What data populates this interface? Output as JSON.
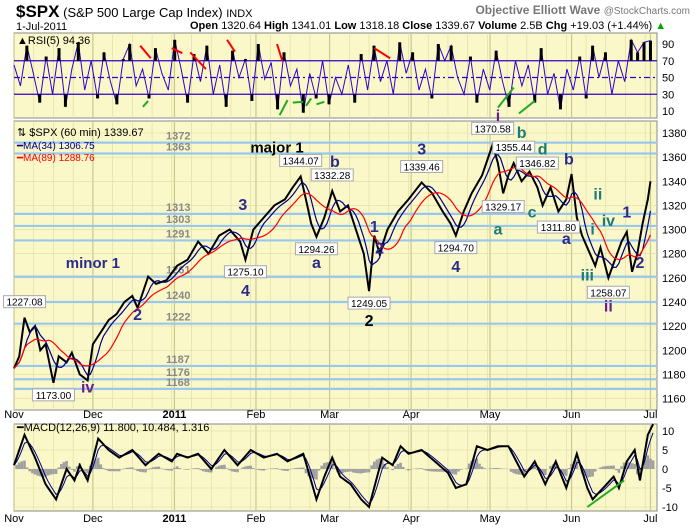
{
  "header": {
    "symbol": "$SPX",
    "name": "(S&P 500 Large Cap Index)",
    "exchange": "INDX",
    "brand": "Objective Elliott Wave",
    "site": "@StockCharts.com",
    "date": "1-Jul-2011",
    "open_label": "Open",
    "open": "1320.64",
    "high_label": "High",
    "high": "1341.01",
    "low_label": "Low",
    "low": "1318.18",
    "close_label": "Close",
    "close": "1339.67",
    "volume_label": "Volume",
    "volume": "2.5B",
    "chg_label": "Chg",
    "chg": "+19.03 (+1.44%)"
  },
  "colors": {
    "panel": "#faf7c8",
    "grid": "#dcdca0",
    "price": "#000000",
    "ma34": "#00008b",
    "ma89": "#ff0000",
    "hline": "#99c8ee",
    "wave": "#2b2b8c",
    "wave_teal": "#1e7a78",
    "wave_purple": "#6a1f8a",
    "rsi": "#3300cc",
    "hist": "#a0a0a0",
    "trend_red": "#ff0000",
    "trend_green": "#22aa22"
  },
  "chart_data": [
    {
      "type": "line",
      "title": "$SPX (60 min) 1339.67",
      "legend": [
        "MA(34) 1306.75",
        "MA(89) 1288.76"
      ],
      "ylim": [
        1150,
        1390
      ],
      "yticks": [
        1160,
        1180,
        1200,
        1220,
        1240,
        1260,
        1280,
        1300,
        1320,
        1340,
        1360,
        1380
      ],
      "xticks": [
        {
          "d": 0,
          "label": "Nov"
        },
        {
          "d": 30,
          "label": "Dec"
        },
        {
          "d": 61,
          "label": "2011",
          "bold": true
        },
        {
          "d": 92,
          "label": "Feb"
        },
        {
          "d": 120,
          "label": "Mar"
        },
        {
          "d": 151,
          "label": "Apr"
        },
        {
          "d": 181,
          "label": "May"
        },
        {
          "d": 212,
          "label": "Jun"
        },
        {
          "d": 242,
          "label": "Jul"
        }
      ],
      "price": [
        [
          0,
          1185
        ],
        [
          2,
          1195
        ],
        [
          4,
          1227
        ],
        [
          6,
          1215
        ],
        [
          8,
          1220
        ],
        [
          10,
          1200
        ],
        [
          12,
          1205
        ],
        [
          15,
          1173
        ],
        [
          17,
          1195
        ],
        [
          20,
          1190
        ],
        [
          22,
          1198
        ],
        [
          25,
          1180
        ],
        [
          28,
          1175
        ],
        [
          30,
          1205
        ],
        [
          33,
          1215
        ],
        [
          36,
          1225
        ],
        [
          39,
          1230
        ],
        [
          42,
          1240
        ],
        [
          45,
          1245
        ],
        [
          47,
          1235
        ],
        [
          51,
          1261
        ],
        [
          54,
          1255
        ],
        [
          58,
          1258
        ],
        [
          62,
          1270
        ],
        [
          66,
          1275
        ],
        [
          70,
          1290
        ],
        [
          74,
          1280
        ],
        [
          78,
          1295
        ],
        [
          82,
          1300
        ],
        [
          86,
          1290
        ],
        [
          88,
          1275
        ],
        [
          91,
          1300
        ],
        [
          95,
          1310
        ],
        [
          99,
          1320
        ],
        [
          103,
          1325
        ],
        [
          106,
          1335
        ],
        [
          109,
          1344
        ],
        [
          111,
          1325
        ],
        [
          113,
          1305
        ],
        [
          115,
          1294
        ],
        [
          118,
          1310
        ],
        [
          121,
          1332
        ],
        [
          124,
          1315
        ],
        [
          127,
          1320
        ],
        [
          130,
          1300
        ],
        [
          133,
          1280
        ],
        [
          135,
          1249
        ],
        [
          137,
          1295
        ],
        [
          139,
          1280
        ],
        [
          142,
          1300
        ],
        [
          146,
          1315
        ],
        [
          150,
          1325
        ],
        [
          155,
          1339
        ],
        [
          159,
          1330
        ],
        [
          163,
          1315
        ],
        [
          166,
          1305
        ],
        [
          168,
          1295
        ],
        [
          171,
          1315
        ],
        [
          174,
          1330
        ],
        [
          178,
          1345
        ],
        [
          182,
          1370.58
        ],
        [
          184,
          1355
        ],
        [
          186,
          1330
        ],
        [
          188,
          1345
        ],
        [
          190,
          1355
        ],
        [
          193,
          1340
        ],
        [
          196,
          1348
        ],
        [
          199,
          1335
        ],
        [
          201,
          1320
        ],
        [
          204,
          1335
        ],
        [
          207,
          1315
        ],
        [
          210,
          1325
        ],
        [
          212,
          1346
        ],
        [
          214,
          1310
        ],
        [
          216,
          1295
        ],
        [
          218,
          1285
        ],
        [
          221,
          1270
        ],
        [
          223,
          1285
        ],
        [
          226,
          1260
        ],
        [
          228,
          1272
        ],
        [
          231,
          1290
        ],
        [
          233,
          1298
        ],
        [
          235,
          1265
        ],
        [
          237,
          1280
        ],
        [
          239,
          1305
        ],
        [
          241,
          1325
        ],
        [
          242,
          1340
        ]
      ],
      "levels": [
        1372,
        1363,
        1313,
        1303,
        1291,
        1261,
        1240,
        1222,
        1187,
        1176,
        1168
      ],
      "callouts": [
        [
          4,
          1227,
          "1227.08"
        ],
        [
          15,
          1173,
          "1173.00"
        ],
        [
          88,
          1275,
          "1275.10"
        ],
        [
          109,
          1344,
          "1344.07"
        ],
        [
          115,
          1294,
          "1294.26"
        ],
        [
          121,
          1332,
          "1332.28"
        ],
        [
          135,
          1249,
          "1249.05"
        ],
        [
          155,
          1339,
          "1339.46"
        ],
        [
          168,
          1295,
          "1294.70"
        ],
        [
          182,
          1370.6,
          "1370.58"
        ],
        [
          190,
          1355,
          "1355.44"
        ],
        [
          199,
          1346,
          "1346.82"
        ],
        [
          186,
          1329,
          "1329.17"
        ],
        [
          207,
          1312,
          "1311.80"
        ],
        [
          226,
          1258,
          "1258.07"
        ]
      ],
      "waves": [
        [
          30,
          1268,
          "minor 1",
          "w"
        ],
        [
          47,
          1225,
          "2",
          "w"
        ],
        [
          28,
          1165,
          "iv",
          "p"
        ],
        [
          100,
          1358,
          "major 1",
          "k"
        ],
        [
          88,
          1255,
          "4",
          "w"
        ],
        [
          87,
          1316,
          "3",
          "w"
        ],
        [
          122,
          1340,
          "b",
          "w"
        ],
        [
          115,
          1280,
          "a",
          "w"
        ],
        [
          137,
          1298,
          "1",
          "w"
        ],
        [
          139,
          1280,
          "2",
          "w"
        ],
        [
          135,
          1232,
          "2",
          "k"
        ],
        [
          155,
          1350,
          "3",
          "w"
        ],
        [
          168,
          1278,
          "4",
          "w"
        ],
        [
          184,
          1384,
          "i",
          "p"
        ],
        [
          190,
          1376,
          "b",
          "t"
        ],
        [
          199,
          1362,
          "d",
          "t"
        ],
        [
          184,
          1312,
          "a",
          "t"
        ],
        [
          193,
          1312,
          "c",
          "t"
        ],
        [
          211,
          1354,
          "b",
          "w"
        ],
        [
          210,
          1300,
          "a",
          "w"
        ],
        [
          220,
          1296,
          "i",
          "t"
        ],
        [
          222,
          1325,
          "ii",
          "t"
        ],
        [
          226,
          1303,
          "iv",
          "t"
        ],
        [
          218,
          1258,
          "iii",
          "t"
        ],
        [
          231,
          1310,
          "1",
          "w"
        ],
        [
          238,
          1268,
          "2",
          "w"
        ],
        [
          226,
          1245,
          "ii",
          "p"
        ]
      ]
    },
    {
      "type": "line",
      "title": "RSI(5) 94.36",
      "ylim": [
        0,
        100
      ],
      "yticks": [
        10,
        30,
        50,
        70,
        90
      ],
      "levels": [
        30,
        50,
        70
      ],
      "values": [
        65,
        40,
        88,
        55,
        20,
        75,
        30,
        85,
        15,
        60,
        92,
        35,
        70,
        25,
        80,
        45,
        18,
        72,
        90,
        40,
        60,
        25,
        85,
        55,
        35,
        95,
        60,
        20,
        78,
        45,
        88,
        30,
        65,
        15,
        82,
        50,
        72,
        22,
        90,
        48,
        68,
        12,
        80,
        40,
        60,
        8,
        55,
        25,
        70,
        18,
        50,
        30,
        65,
        20,
        78,
        35,
        88,
        45,
        70,
        30,
        92,
        55,
        80,
        35,
        60,
        25,
        90,
        70,
        88,
        50,
        30,
        75,
        20,
        60,
        35,
        82,
        45,
        15,
        70,
        40,
        65,
        20,
        85,
        30,
        55,
        12,
        60,
        35,
        75,
        25,
        88,
        50,
        80,
        30,
        70,
        45,
        95,
        80,
        92,
        94
      ],
      "trend_red": [
        [
          48,
          88,
          52,
          73
        ],
        [
          60,
          85,
          64,
          79
        ],
        [
          67,
          80,
          73,
          60
        ],
        [
          81,
          95,
          84,
          81
        ],
        [
          100,
          90,
          102,
          70
        ],
        [
          137,
          85,
          143,
          73
        ]
      ],
      "trend_green": [
        [
          49,
          15,
          51,
          22
        ],
        [
          101,
          5,
          104,
          23
        ],
        [
          106,
          20,
          110,
          21
        ],
        [
          111,
          16,
          113,
          25
        ],
        [
          115,
          18,
          118,
          21
        ],
        [
          184,
          14,
          190,
          38
        ],
        [
          192,
          7,
          198,
          22
        ]
      ]
    },
    {
      "type": "line",
      "title": "MACD(12,26,9) 11.800, 10.484, 1.316",
      "ylim": [
        -12,
        13
      ],
      "yticks": [
        -10,
        -5,
        0,
        5,
        10
      ],
      "macd_label": "MACD(12,26,9)",
      "macd_value": "11.800",
      "signal_value": "10.484",
      "hist_value": "1.316",
      "macd": [
        [
          0,
          1
        ],
        [
          4,
          9
        ],
        [
          8,
          3
        ],
        [
          12,
          -4
        ],
        [
          16,
          -8
        ],
        [
          20,
          0
        ],
        [
          23,
          -3
        ],
        [
          25,
          1
        ],
        [
          28,
          -3
        ],
        [
          32,
          8
        ],
        [
          36,
          5
        ],
        [
          40,
          3
        ],
        [
          45,
          5
        ],
        [
          50,
          1
        ],
        [
          55,
          4
        ],
        [
          60,
          2
        ],
        [
          62,
          4
        ],
        [
          66,
          3
        ],
        [
          70,
          4
        ],
        [
          75,
          0
        ],
        [
          80,
          5
        ],
        [
          85,
          1
        ],
        [
          90,
          5
        ],
        [
          95,
          3
        ],
        [
          100,
          4
        ],
        [
          104,
          2
        ],
        [
          110,
          4
        ],
        [
          115,
          -8
        ],
        [
          118,
          -2
        ],
        [
          121,
          3
        ],
        [
          124,
          -2
        ],
        [
          128,
          -4
        ],
        [
          132,
          -8
        ],
        [
          135,
          -10
        ],
        [
          140,
          3
        ],
        [
          144,
          1
        ],
        [
          147,
          6
        ],
        [
          150,
          4
        ],
        [
          155,
          5
        ],
        [
          160,
          2
        ],
        [
          165,
          -1
        ],
        [
          168,
          -5
        ],
        [
          172,
          -4
        ],
        [
          176,
          6
        ],
        [
          180,
          5
        ],
        [
          184,
          6
        ],
        [
          188,
          6
        ],
        [
          194,
          -2
        ],
        [
          198,
          2
        ],
        [
          202,
          -4
        ],
        [
          206,
          2
        ],
        [
          210,
          -5
        ],
        [
          214,
          4
        ],
        [
          218,
          -5
        ],
        [
          220,
          -8
        ],
        [
          224,
          -5
        ],
        [
          228,
          -2
        ],
        [
          230,
          -5
        ],
        [
          233,
          2
        ],
        [
          236,
          5
        ],
        [
          238,
          -3
        ],
        [
          241,
          9
        ],
        [
          243,
          11.8
        ]
      ],
      "trend_green": [
        [
          218,
          -10,
          232,
          -3
        ]
      ]
    }
  ]
}
